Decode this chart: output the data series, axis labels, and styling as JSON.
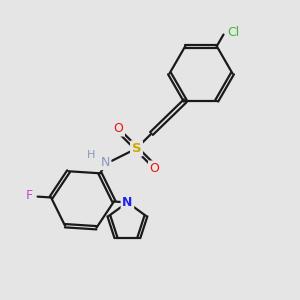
{
  "background_color": "#e5e5e5",
  "bond_color": "#1a1a1a",
  "bond_width": 1.6,
  "atom_colors": {
    "Cl": "#3cb83c",
    "O": "#ee1111",
    "S": "#ccaa00",
    "NH": "#8899bb",
    "H": "#8899bb",
    "N_pyrrole": "#2222ee",
    "F": "#cc44cc"
  },
  "figsize": [
    3.0,
    3.0
  ],
  "dpi": 100
}
